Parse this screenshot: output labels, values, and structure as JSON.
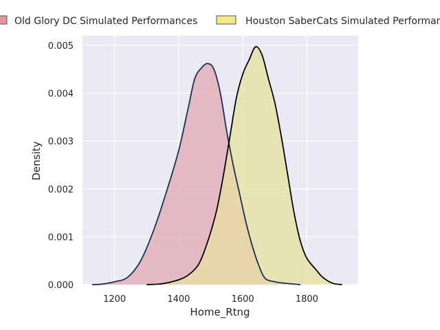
{
  "chart_data": {
    "type": "area",
    "title": "",
    "xlabel": "Home_Rtng",
    "ylabel": "Density",
    "xlim": [
      1100,
      1960
    ],
    "ylim": [
      0,
      0.0052
    ],
    "x_ticks": [
      1200,
      1400,
      1600,
      1800
    ],
    "x_tick_labels": [
      "1200",
      "1400",
      "1600",
      "1800"
    ],
    "y_ticks": [
      0,
      0.001,
      0.002,
      0.003,
      0.004,
      0.005
    ],
    "y_tick_labels": [
      "0.000",
      "0.001",
      "0.002",
      "0.003",
      "0.004",
      "0.005"
    ],
    "grid": true,
    "legend_position": "top",
    "series": [
      {
        "name": "Old Glory DC Simulated Performances",
        "fill_color": "#e3a6b0",
        "legend_color": "#e09898",
        "line_color": "#1c2e52",
        "points": [
          [
            1130,
            0
          ],
          [
            1160,
            1e-05
          ],
          [
            1200,
            6e-05
          ],
          [
            1240,
            0.00015
          ],
          [
            1280,
            0.00048
          ],
          [
            1320,
            0.0011
          ],
          [
            1360,
            0.0019
          ],
          [
            1400,
            0.0028
          ],
          [
            1430,
            0.0037
          ],
          [
            1450,
            0.0043
          ],
          [
            1470,
            0.00452
          ],
          [
            1490,
            0.00462
          ],
          [
            1510,
            0.0045
          ],
          [
            1530,
            0.004
          ],
          [
            1550,
            0.0032
          ],
          [
            1570,
            0.0025
          ],
          [
            1590,
            0.0019
          ],
          [
            1610,
            0.0013
          ],
          [
            1630,
            0.0008
          ],
          [
            1650,
            0.0004
          ],
          [
            1670,
            0.00013
          ],
          [
            1700,
            6e-05
          ],
          [
            1730,
            3e-05
          ],
          [
            1780,
            0
          ]
        ]
      },
      {
        "name": "Houston SaberCats Simulated Performances",
        "fill_color": "#e6e0a0",
        "legend_color": "#f2e889",
        "line_color": "#000000",
        "points": [
          [
            1300,
            0
          ],
          [
            1350,
            2e-05
          ],
          [
            1400,
            0.0001
          ],
          [
            1430,
            0.0002
          ],
          [
            1460,
            0.0004
          ],
          [
            1480,
            0.0007
          ],
          [
            1500,
            0.0011
          ],
          [
            1520,
            0.0016
          ],
          [
            1540,
            0.0023
          ],
          [
            1560,
            0.0031
          ],
          [
            1580,
            0.0039
          ],
          [
            1600,
            0.0044
          ],
          [
            1620,
            0.0047
          ],
          [
            1640,
            0.00497
          ],
          [
            1660,
            0.0048
          ],
          [
            1680,
            0.0043
          ],
          [
            1700,
            0.0038
          ],
          [
            1720,
            0.0031
          ],
          [
            1740,
            0.0023
          ],
          [
            1760,
            0.0015
          ],
          [
            1780,
            0.0009
          ],
          [
            1800,
            0.00055
          ],
          [
            1830,
            0.0003
          ],
          [
            1850,
            0.00015
          ],
          [
            1880,
            3e-05
          ],
          [
            1910,
            0
          ]
        ]
      }
    ]
  }
}
